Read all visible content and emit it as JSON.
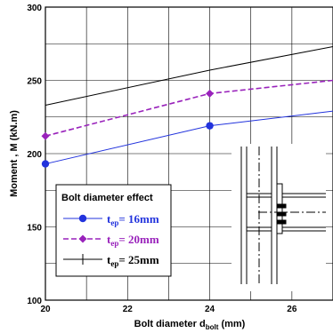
{
  "chart_data": {
    "type": "line",
    "title": "",
    "xlabel": "Bolt diameter d",
    "xlabel_sub": "bolt",
    "xlabel_unit": " (mm)",
    "ylabel": "Moment , M (kN.m)",
    "xlim": [
      20,
      27
    ],
    "ylim": [
      100,
      300
    ],
    "x_ticks": [
      20,
      22,
      24,
      26
    ],
    "y_ticks": [
      100,
      150,
      200,
      250,
      300
    ],
    "grid": true,
    "legend_position": "bottom-left",
    "legend_title": "Bolt diameter effect",
    "series": [
      {
        "label_main": "t",
        "label_sub": "ep",
        "label_value": "= 16mm",
        "color": "#2233dd",
        "marker": "circle",
        "dash": "solid",
        "x": [
          20,
          24,
          27
        ],
        "y": [
          193,
          219,
          229
        ]
      },
      {
        "label_main": "t",
        "label_sub": "ep",
        "label_value": "= 20mm",
        "color": "#9922bb",
        "marker": "diamond",
        "dash": "dashed",
        "x": [
          20,
          24,
          27
        ],
        "y": [
          212,
          241,
          250
        ]
      },
      {
        "label_main": "t",
        "label_sub": "ep",
        "label_value": "= 25mm",
        "color": "#000000",
        "marker": "none",
        "dash": "solid",
        "x": [
          20,
          24,
          27
        ],
        "y": [
          233,
          257,
          273
        ]
      }
    ]
  },
  "inset": {
    "description_icon": "end-plate-connection-diagram"
  }
}
